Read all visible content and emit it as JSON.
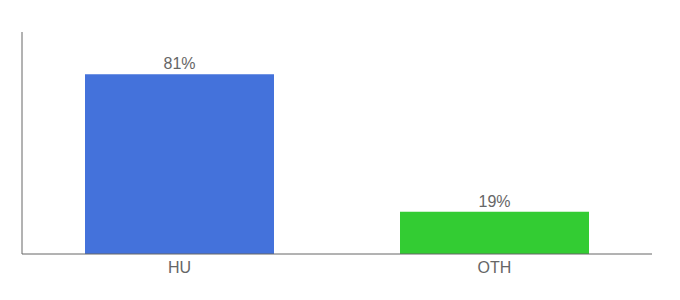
{
  "chart_data": {
    "type": "bar",
    "categories": [
      "HU",
      "OTH"
    ],
    "values": [
      81,
      19
    ],
    "colors": [
      "#4472db",
      "#33cc33"
    ],
    "ylim": [
      0,
      100
    ],
    "data_labels": true,
    "value_labels": [
      "81%",
      "19%"
    ],
    "tick_labels": "x"
  }
}
